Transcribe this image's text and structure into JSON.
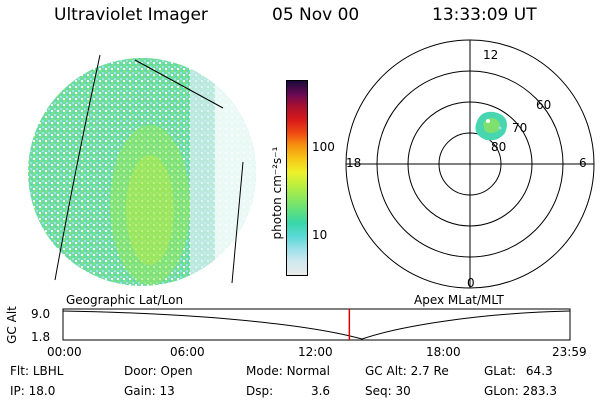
{
  "header": {
    "instrument": "Ultraviolet Imager",
    "date": "05 Nov 00",
    "time": "13:33:09 UT"
  },
  "colorbar": {
    "unit_label": "photon cm⁻²s⁻¹",
    "ticks": [
      "100",
      "10"
    ],
    "scale": "log",
    "colors": [
      "#eaeaea",
      "#cfe9ee",
      "#9fe1ea",
      "#5ad8d6",
      "#38d6a8",
      "#5fe07f",
      "#8fe85a",
      "#c2ef3c",
      "#eef02a",
      "#f7c617",
      "#f6900f",
      "#ef4a12",
      "#d81a1a",
      "#a8102f",
      "#6a0a55",
      "#1a0a3a"
    ]
  },
  "polar_plot": {
    "mlt_labels": [
      "12",
      "18",
      "6",
      "0"
    ],
    "mlat_labels": [
      "60",
      "70",
      "80"
    ]
  },
  "panels": {
    "geographic_label": "Geographic Lat/Lon",
    "apex_label": "Apex MLat/MLT"
  },
  "altitude_plot": {
    "axis_label": "GC Alt",
    "y_ticks": [
      "9.0",
      "1.8"
    ],
    "x_ticks": [
      "00:00",
      "06:00",
      "12:00",
      "18:00",
      "23:59"
    ],
    "current_time_fraction": 0.5648,
    "current_marker_color": "#e00000"
  },
  "info": {
    "flt_label": "Flt:",
    "flt_value": "LBHL",
    "ip_label": "IP:",
    "ip_value": "18.0",
    "door_label": "Door:",
    "door_value": "Open",
    "gain_label": "Gain:",
    "gain_value": "13",
    "mode_label": "Mode:",
    "mode_value": "Normal",
    "dsp_label": "Dsp:",
    "dsp_value": "3.6",
    "gcalt_label": "GC Alt:",
    "gcalt_value": "2.7 Re",
    "seq_label": "Seq:",
    "seq_value": "30",
    "glat_label": "GLat:",
    "glat_value": "64.3",
    "glon_label": "GLon:",
    "glon_value": "283.3"
  }
}
